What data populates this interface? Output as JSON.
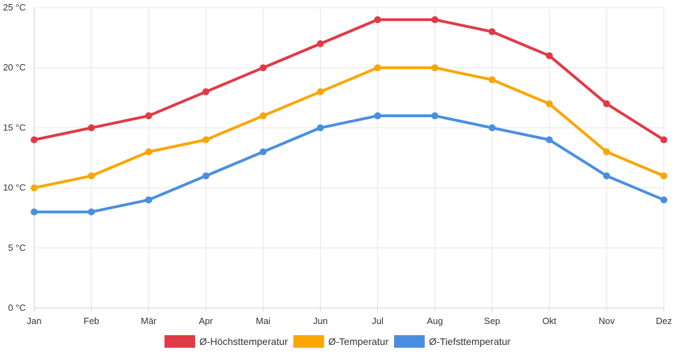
{
  "chart_data": {
    "type": "line",
    "categories": [
      "Jan",
      "Feb",
      "Mär",
      "Apr",
      "Mai",
      "Jun",
      "Jul",
      "Aug",
      "Sep",
      "Okt",
      "Nov",
      "Dez"
    ],
    "series": [
      {
        "name": "Ø-Höchsttemperatur",
        "color": "#e03a46",
        "values": [
          14,
          15,
          16,
          18,
          20,
          22,
          24,
          24,
          23,
          21,
          17,
          14
        ]
      },
      {
        "name": "Ø-Temperatur",
        "color": "#f9a602",
        "values": [
          10,
          11,
          13,
          14,
          16,
          18,
          20,
          20,
          19,
          17,
          13,
          11
        ]
      },
      {
        "name": "Ø-Tiefsttemperatur",
        "color": "#4a8fdf",
        "values": [
          8,
          8,
          9,
          11,
          13,
          15,
          16,
          16,
          15,
          14,
          11,
          9
        ]
      }
    ],
    "y_ticks": [
      {
        "value": 0,
        "label": "0 °C"
      },
      {
        "value": 5,
        "label": "5 °C"
      },
      {
        "value": 10,
        "label": "10 °C"
      },
      {
        "value": 15,
        "label": "15 °C"
      },
      {
        "value": 20,
        "label": "20 °C"
      },
      {
        "value": 25,
        "label": "25 °C"
      }
    ],
    "ylim": [
      0,
      25
    ],
    "grid": true,
    "legend_position": "bottom-center"
  }
}
